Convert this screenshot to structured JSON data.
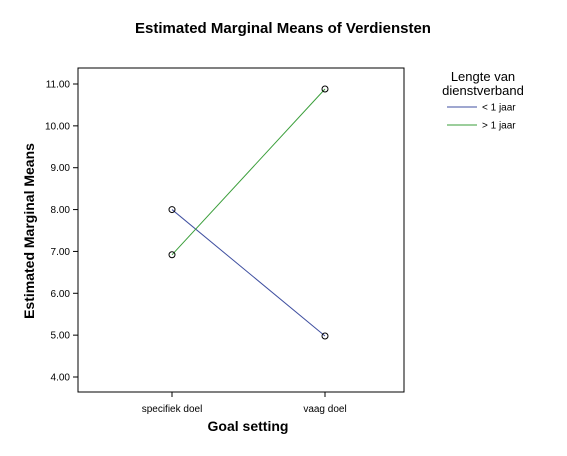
{
  "chart_data": {
    "type": "line",
    "title": "Estimated Marginal Means of Verdiensten",
    "xlabel": "Goal setting",
    "ylabel": "Estimated Marginal Means",
    "categories": [
      "specifiek doel",
      "vaag doel"
    ],
    "ylim": [
      3.75,
      11.4
    ],
    "yticks": [
      4.0,
      5.0,
      6.0,
      7.0,
      8.0,
      9.0,
      10.0,
      11.0
    ],
    "ytick_labels": [
      "4.00",
      "5.00",
      "6.00",
      "7.00",
      "8.00",
      "9.00",
      "10.00",
      "11.00"
    ],
    "legend_title": "Lengte van dienstverband",
    "legend_title_lines": [
      "Lengte van",
      "dienstverband"
    ],
    "legend_position": "right",
    "grid": false,
    "series": [
      {
        "name": "< 1 jaar",
        "values": [
          8.0,
          4.98
        ],
        "color": "#3f4fa0"
      },
      {
        "name": "> 1 jaar",
        "values": [
          6.92,
          10.88
        ],
        "color": "#3a9e3a"
      }
    ]
  }
}
